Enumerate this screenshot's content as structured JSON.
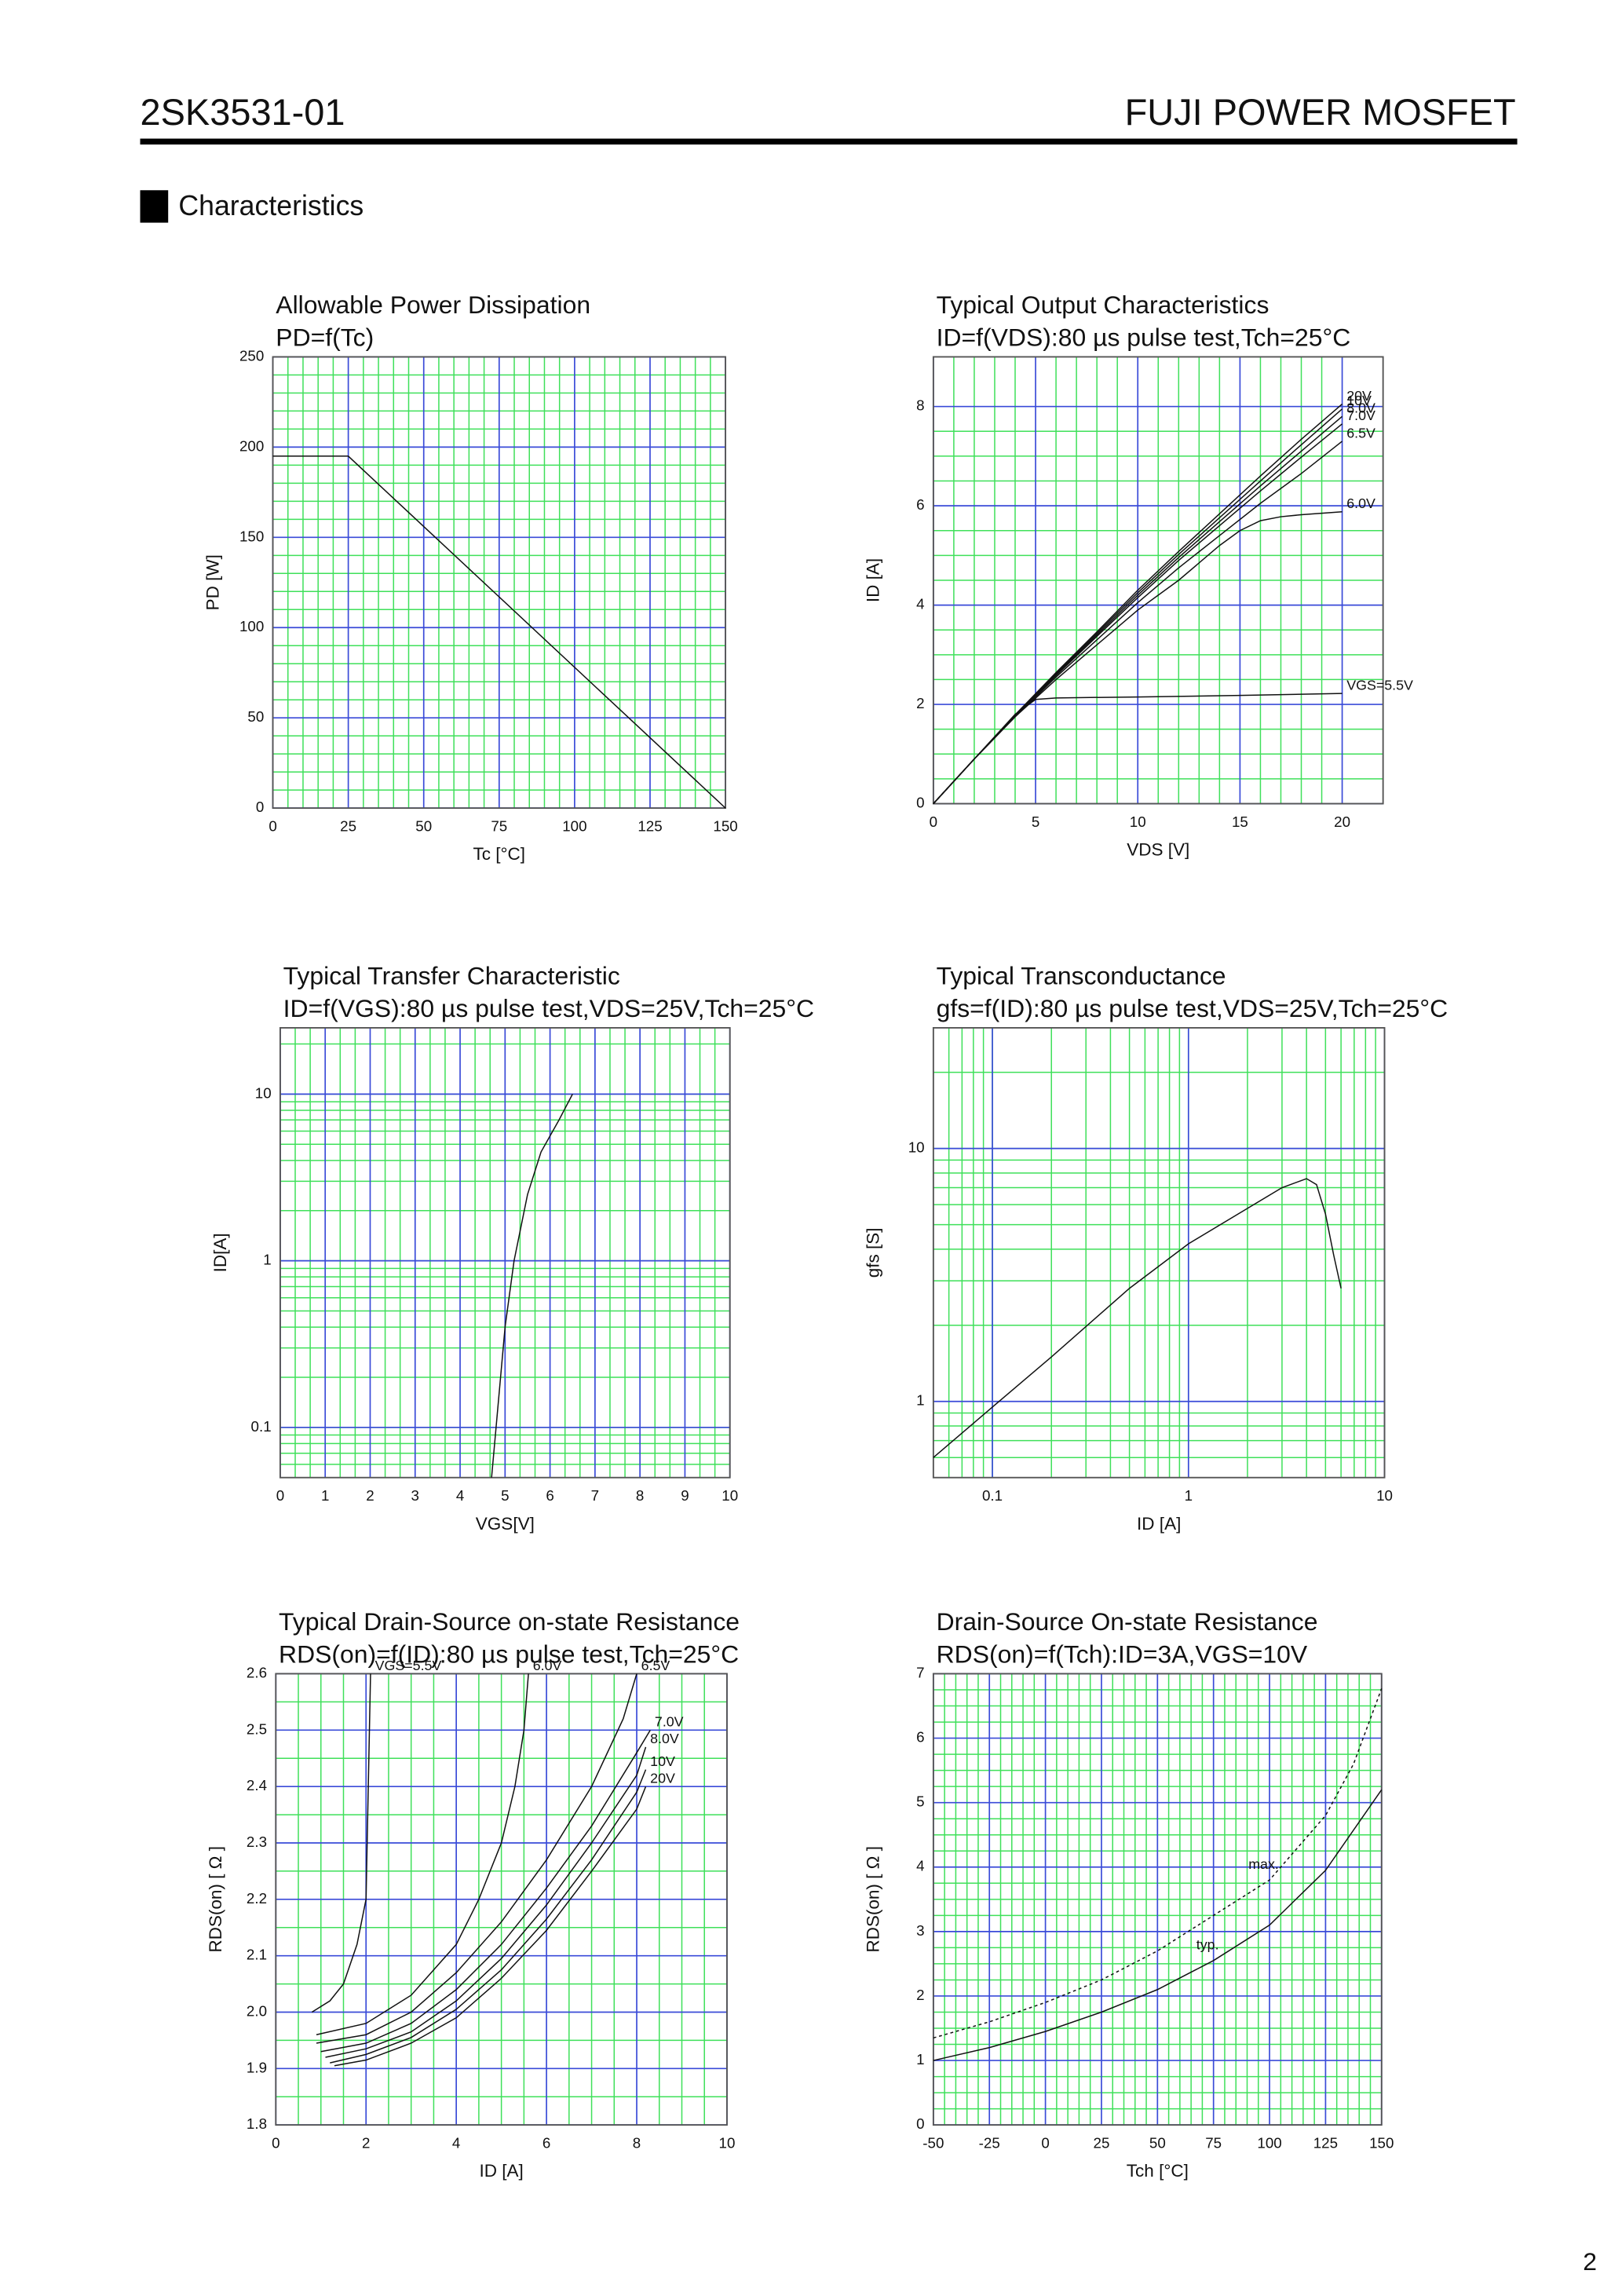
{
  "header": {
    "title": "2SK3531-01",
    "brand": "FUJI POWER MOSFET"
  },
  "section": "Characteristics",
  "page_number": "2",
  "chart_data": [
    {
      "type": "line",
      "title": "Allowable Power Dissipation",
      "subtitle": "PD=f(Tc)",
      "x_label": "Tc [°C]",
      "y_label": "PD [W]",
      "xlim": [
        0,
        150
      ],
      "xticks": [
        0,
        25,
        50,
        75,
        100,
        125,
        150
      ],
      "ylim": [
        0,
        250
      ],
      "yticks": [
        0,
        50,
        100,
        150,
        200,
        250
      ],
      "grid": true,
      "x": [
        0,
        25,
        150
      ],
      "values": [
        195,
        195,
        0
      ]
    },
    {
      "type": "line",
      "title": "Typical Output Characteristics",
      "subtitle": "ID=f(VDS):80 µs pulse test,Tch=25°C",
      "x_label": "VDS [V]",
      "y_label": "ID [A]",
      "xlim": [
        0,
        22
      ],
      "xticks": [
        0,
        5,
        10,
        15,
        20
      ],
      "ylim": [
        0,
        9
      ],
      "yticks": [
        0,
        2,
        4,
        6,
        8
      ],
      "grid": true,
      "series": [
        {
          "name": "VGS=5.5V",
          "x": [
            0,
            1,
            2,
            3,
            4,
            5,
            6,
            10,
            15,
            20
          ],
          "values": [
            0,
            0.45,
            0.9,
            1.35,
            1.8,
            2.1,
            2.13,
            2.15,
            2.18,
            2.22
          ]
        },
        {
          "name": "6.0V",
          "x": [
            0,
            2,
            4,
            6,
            8,
            10,
            12,
            14,
            15,
            16,
            17,
            18,
            20
          ],
          "values": [
            0,
            0.9,
            1.75,
            2.5,
            3.2,
            3.9,
            4.5,
            5.2,
            5.5,
            5.7,
            5.78,
            5.82,
            5.88
          ]
        },
        {
          "name": "6.5V",
          "x": [
            0,
            2,
            4,
            6,
            8,
            10,
            12,
            14,
            16,
            18,
            20
          ],
          "values": [
            0,
            0.9,
            1.75,
            2.55,
            3.3,
            4.05,
            4.75,
            5.4,
            6.05,
            6.65,
            7.3
          ]
        },
        {
          "name": "7.0V",
          "x": [
            0,
            2,
            4,
            6,
            8,
            10,
            12,
            14,
            16,
            18,
            20
          ],
          "values": [
            0,
            0.9,
            1.76,
            2.58,
            3.37,
            4.15,
            4.9,
            5.6,
            6.3,
            6.98,
            7.65
          ]
        },
        {
          "name": "8.0V",
          "x": [
            0,
            2,
            4,
            6,
            8,
            10,
            12,
            14,
            16,
            18,
            20
          ],
          "values": [
            0,
            0.9,
            1.77,
            2.6,
            3.4,
            4.2,
            4.96,
            5.68,
            6.4,
            7.1,
            7.8
          ]
        },
        {
          "name": "10V",
          "x": [
            0,
            2,
            4,
            6,
            8,
            10,
            12,
            14,
            16,
            18,
            20
          ],
          "values": [
            0,
            0.9,
            1.78,
            2.62,
            3.43,
            4.25,
            5.02,
            5.76,
            6.5,
            7.23,
            7.95
          ]
        },
        {
          "name": "20V",
          "x": [
            0,
            2,
            4,
            6,
            8,
            10,
            12,
            14,
            16,
            18,
            20
          ],
          "values": [
            0,
            0.9,
            1.79,
            2.64,
            3.46,
            4.3,
            5.08,
            5.84,
            6.6,
            7.34,
            8.05
          ]
        }
      ]
    },
    {
      "type": "line",
      "title": "Typical Transfer Characteristic",
      "subtitle": "ID=f(VGS):80 µs pulse test,VDS=25V,Tch=25°C",
      "x_label": "VGS[V]",
      "y_label": "ID[A]",
      "xlim": [
        0,
        10
      ],
      "xticks": [
        0,
        1,
        2,
        3,
        4,
        5,
        6,
        7,
        8,
        9,
        10
      ],
      "ylim": [
        0.05,
        25
      ],
      "yticks": [
        0.1,
        1,
        10
      ],
      "yscale": "log",
      "grid": true,
      "x": [
        4.7,
        4.8,
        5,
        5.2,
        5.5,
        5.8,
        6.2,
        6.5
      ],
      "values": [
        0.05,
        0.1,
        0.4,
        1,
        2.5,
        4.5,
        7,
        10
      ]
    },
    {
      "type": "line",
      "title": "Typical Transconductance",
      "subtitle": "gfs=f(ID):80 µs pulse test,VDS=25V,Tch=25°C",
      "x_label": "ID [A]",
      "y_label": "gfs [S]",
      "xlim": [
        0.05,
        10
      ],
      "xticks": [
        0.1,
        1,
        10
      ],
      "xscale": "log",
      "ylim": [
        0.5,
        30
      ],
      "yticks": [
        1,
        10
      ],
      "yscale": "log",
      "grid": true,
      "x": [
        0.05,
        0.1,
        0.2,
        0.5,
        1,
        2,
        3,
        4,
        4.5,
        5,
        5.5,
        6
      ],
      "values": [
        0.6,
        0.95,
        1.5,
        2.8,
        4.2,
        5.8,
        7,
        7.6,
        7.2,
        5.5,
        3.8,
        2.8
      ]
    },
    {
      "type": "line",
      "title": "Typical Drain-Source on-state Resistance",
      "subtitle": "RDS(on)=f(ID):80  µs pulse test,Tch=25°C",
      "x_label": "ID [A]",
      "y_label": "RDS(on) [ Ω ]",
      "xlim": [
        0,
        10
      ],
      "xticks": [
        0,
        2,
        4,
        6,
        8,
        10
      ],
      "ylim": [
        1.8,
        2.6
      ],
      "yticks": [
        1.8,
        1.9,
        {
          "value": 2,
          "label": "2.0"
        },
        2.1,
        2.2,
        2.3,
        2.4,
        2.5,
        2.6
      ],
      "grid": true,
      "series": [
        {
          "name": "VGS=5.5V",
          "x": [
            0.8,
            1.2,
            1.5,
            1.8,
            2,
            2.05,
            2.1
          ],
          "values": [
            2,
            2.02,
            2.05,
            2.12,
            2.2,
            2.4,
            2.6
          ]
        },
        {
          "name": "6.0V",
          "x": [
            0.9,
            2,
            3,
            4,
            4.5,
            5,
            5.3,
            5.5,
            5.6
          ],
          "values": [
            1.96,
            1.98,
            2.03,
            2.12,
            2.2,
            2.3,
            2.4,
            2.5,
            2.6
          ]
        },
        {
          "name": "6.5V",
          "x": [
            0.9,
            2,
            3,
            4,
            5,
            6,
            7,
            7.7,
            8
          ],
          "values": [
            1.945,
            1.96,
            2,
            2.07,
            2.16,
            2.27,
            2.4,
            2.52,
            2.6
          ]
        },
        {
          "name": "7.0V",
          "x": [
            1,
            2,
            3,
            4,
            5,
            6,
            7,
            8,
            8.3
          ],
          "values": [
            1.93,
            1.945,
            1.98,
            2.04,
            2.12,
            2.22,
            2.33,
            2.46,
            2.5
          ]
        },
        {
          "name": "8.0V",
          "x": [
            1.1,
            2,
            3,
            4,
            5,
            6,
            7,
            8,
            8.2
          ],
          "values": [
            1.92,
            1.935,
            1.965,
            2.02,
            2.095,
            2.19,
            2.3,
            2.42,
            2.47
          ]
        },
        {
          "name": "10V",
          "x": [
            1.2,
            2,
            3,
            4,
            5,
            6,
            7,
            8,
            8.2
          ],
          "values": [
            1.91,
            1.925,
            1.955,
            2.005,
            2.075,
            2.165,
            2.27,
            2.39,
            2.43
          ]
        },
        {
          "name": "20V",
          "x": [
            1.3,
            2,
            3,
            4,
            5,
            6,
            7,
            8,
            8.2
          ],
          "values": [
            1.905,
            1.915,
            1.945,
            1.99,
            2.06,
            2.145,
            2.25,
            2.36,
            2.4
          ]
        }
      ]
    },
    {
      "type": "line",
      "title": "Drain-Source On-state Resistance",
      "subtitle": "RDS(on)=f(Tch):ID=3A,VGS=10V",
      "x_label": "Tch [°C]",
      "y_label": "RDS(on) [ Ω ]",
      "xlim": [
        -50,
        150
      ],
      "xticks": [
        -50,
        -25,
        0,
        25,
        50,
        75,
        100,
        125,
        150
      ],
      "ylim": [
        0,
        7
      ],
      "yticks": [
        0,
        1,
        2,
        3,
        4,
        5,
        6,
        7
      ],
      "grid": true,
      "series": [
        {
          "name": "max.",
          "dash": true,
          "x": [
            -50,
            -25,
            0,
            25,
            50,
            75,
            100,
            125,
            137.5,
            150
          ],
          "values": [
            1.35,
            1.6,
            1.9,
            2.25,
            2.7,
            3.25,
            3.8,
            4.8,
            5.6,
            6.77
          ]
        },
        {
          "name": "typ.",
          "x": [
            -50,
            -25,
            0,
            25,
            50,
            75,
            100,
            125,
            150
          ],
          "values": [
            1,
            1.2,
            1.45,
            1.75,
            2.1,
            2.55,
            3.1,
            3.95,
            5.2
          ]
        }
      ]
    }
  ]
}
